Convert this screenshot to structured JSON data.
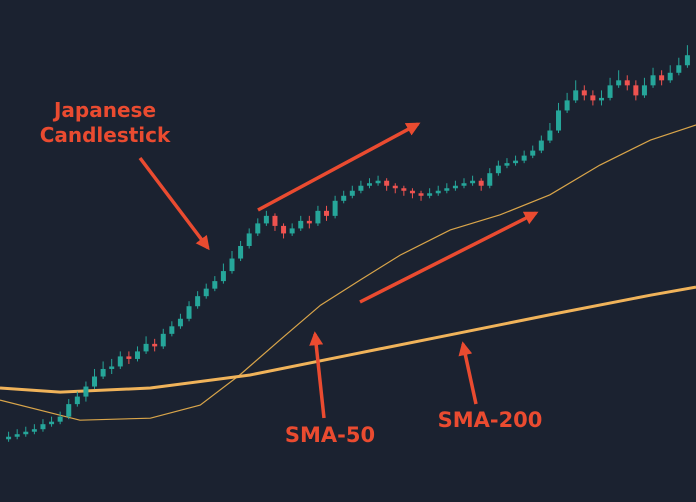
{
  "chart_data": {
    "type": "candlestick",
    "xlim": [
      -1,
      80
    ],
    "ylim": [
      0,
      100
    ],
    "up_color": "#26a69a",
    "down_color": "#ef5350",
    "open": [
      12.5,
      13,
      13.5,
      14,
      14.5,
      15.5,
      16,
      17,
      19.5,
      21,
      23,
      25,
      26.5,
      27,
      29,
      28.5,
      30,
      31.5,
      31,
      33.5,
      35,
      36.5,
      39,
      41,
      42.5,
      44,
      46,
      48.5,
      51,
      53.5,
      55.5,
      57,
      55,
      53.5,
      54.5,
      56,
      55.5,
      58,
      57,
      60,
      61,
      62,
      63,
      63.5,
      64,
      63,
      62.5,
      62,
      61.5,
      61,
      61.5,
      62,
      62.5,
      63,
      63.5,
      64,
      63,
      65.5,
      67,
      67.5,
      68,
      69,
      70,
      72,
      74,
      78,
      80,
      82,
      81,
      80,
      80.5,
      83,
      84,
      83,
      81,
      83,
      85,
      84,
      85.5,
      87
    ],
    "high": [
      14,
      14.5,
      15,
      15.5,
      16.5,
      17,
      18,
      20.5,
      22,
      24,
      26.5,
      28,
      28.5,
      30,
      30,
      31,
      33,
      32.5,
      34.5,
      36,
      37.5,
      40,
      42,
      43.5,
      45,
      47.5,
      50,
      52,
      54.5,
      56.5,
      58,
      57.5,
      55.5,
      55.5,
      57,
      57,
      59,
      59,
      61,
      62,
      63,
      64,
      64.5,
      65,
      64.5,
      63.5,
      63,
      62.5,
      62,
      62.5,
      63,
      63.5,
      64,
      64.5,
      65,
      64.5,
      66.5,
      68,
      68.5,
      69,
      70,
      71,
      73,
      75.5,
      79.5,
      81.5,
      84,
      83,
      82,
      82,
      84.5,
      86,
      85,
      84,
      84.5,
      86.5,
      86,
      87,
      88.5,
      91
    ],
    "low": [
      12,
      12.5,
      13,
      13.5,
      14,
      15,
      15.5,
      16.5,
      19,
      20,
      22.5,
      24.5,
      25.5,
      26.5,
      27.5,
      28,
      29.5,
      30,
      30.5,
      33,
      34.5,
      36,
      38.5,
      40.5,
      42,
      43.5,
      45.5,
      48,
      50.5,
      53,
      55,
      54,
      52.5,
      53,
      54,
      54.5,
      55,
      56,
      56.5,
      59.5,
      60.5,
      61.5,
      62.5,
      63,
      62,
      61.5,
      61,
      60.5,
      60,
      60.5,
      61,
      61.5,
      62,
      62.5,
      63,
      62,
      62.5,
      65,
      66.5,
      67,
      67.5,
      68.5,
      69.5,
      71.5,
      73.5,
      77.5,
      79.5,
      80,
      79,
      79,
      80,
      82.5,
      82,
      80,
      80.5,
      82.5,
      83,
      83.5,
      85,
      86.5
    ],
    "close": [
      13,
      13.5,
      14,
      14.5,
      15.5,
      16,
      17,
      19.5,
      21,
      23,
      25,
      26.5,
      27,
      29,
      28.5,
      30,
      31.5,
      31,
      33.5,
      35,
      36.5,
      39,
      41,
      42.5,
      44,
      46,
      48.5,
      51,
      53.5,
      55.5,
      57,
      55,
      53.5,
      54.5,
      56,
      55.5,
      58,
      57,
      60,
      61,
      62,
      63,
      63.5,
      64,
      63,
      62.5,
      62,
      61.5,
      61,
      61.5,
      62,
      62.5,
      63,
      63.5,
      64,
      63,
      65.5,
      67,
      67.5,
      68,
      69,
      70,
      72,
      74,
      78,
      80,
      82,
      81,
      80,
      80.5,
      83,
      84,
      83,
      81,
      83,
      85,
      84,
      85.5,
      87,
      89
    ],
    "lines": [
      {
        "color": "#d9a54a",
        "x": [
          -1,
          8.3,
          16.5,
          22.3,
          26.9,
          31.6,
          36.3,
          40.9,
          45.6,
          51.4,
          57.2,
          63,
          68.8,
          74.7,
          80
        ],
        "values": [
          20.3,
          16.3,
          16.7,
          19.3,
          25.3,
          32.3,
          39.2,
          44.2,
          49.2,
          54.2,
          57.2,
          61.2,
          67.1,
          72.1,
          75.1
        ]
      },
      {
        "color": "#f0b35a",
        "x": [
          -1,
          6,
          16.5,
          28.1,
          39.7,
          51.4,
          63,
          74.7,
          80
        ],
        "values": [
          22.7,
          21.9,
          22.7,
          25.3,
          29.3,
          33.3,
          37.3,
          41.2,
          42.8
        ]
      }
    ],
    "annotations": [
      {
        "lines": [
          "Japanese",
          "Candlestick"
        ]
      },
      {
        "text": "SMA-50"
      },
      {
        "text": "SMA-200"
      }
    ]
  }
}
